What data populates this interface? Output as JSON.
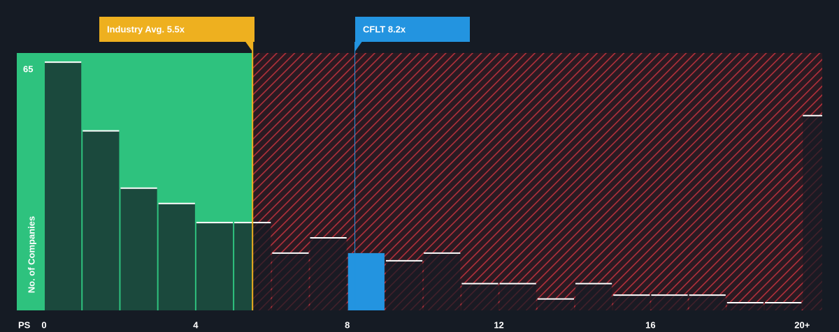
{
  "chart_data": {
    "type": "histogram",
    "x_label": "PS",
    "y_label": "No. of Companies",
    "bins": [
      0,
      1,
      2,
      3,
      4,
      5,
      6,
      7,
      8,
      9,
      10,
      11,
      12,
      13,
      14,
      15,
      16,
      17,
      18,
      19,
      20,
      21
    ],
    "values": [
      65,
      47,
      32,
      28,
      23,
      23,
      15,
      19,
      15,
      13,
      15,
      7,
      7,
      3,
      7,
      4,
      4,
      4,
      2,
      2,
      51
    ],
    "color": "#151b24",
    "highlight_color": "#2394e0",
    "xlim": [
      -0.72,
      20.53
    ],
    "ylim": [
      0,
      67.4
    ],
    "xticks": [
      0,
      4,
      8,
      12,
      16,
      {
        "value": 20,
        "label": "20+"
      }
    ],
    "yticks": [
      65
    ],
    "annotations": [
      {
        "label": "Industry Avg. 5.5x",
        "value": 5.5,
        "color": "#eeb01f"
      },
      {
        "label": "CFLT 8.2x",
        "value": 8.2,
        "color": "#2394e0"
      }
    ],
    "fair_color": "#2ec27e",
    "over_color": "#c8333f"
  }
}
